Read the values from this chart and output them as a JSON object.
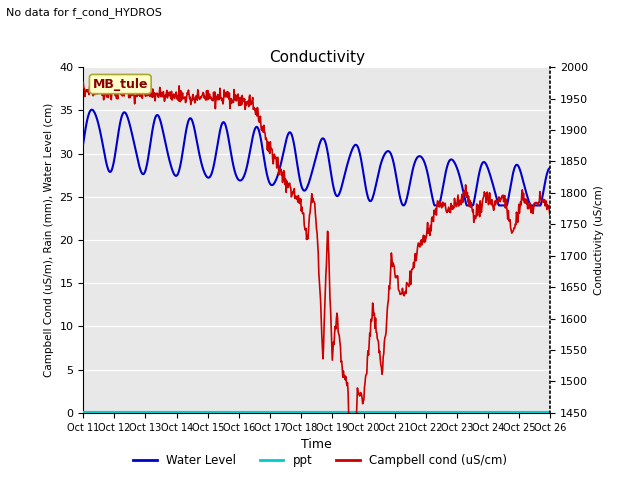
{
  "title": "Conductivity",
  "top_left_text": "No data for f_cond_HYDROS",
  "xlabel": "Time",
  "ylabel_left": "Campbell Cond (uS/m), Rain (mm), Water Level (cm)",
  "ylabel_right": "Conductivity (uS/cm)",
  "ylim_left": [
    0,
    40
  ],
  "ylim_right": [
    1450,
    2000
  ],
  "yticks_left": [
    0,
    5,
    10,
    15,
    20,
    25,
    30,
    35,
    40
  ],
  "yticks_right": [
    1450,
    1500,
    1550,
    1600,
    1650,
    1700,
    1750,
    1800,
    1850,
    1900,
    1950,
    2000
  ],
  "xtick_labels": [
    "Oct 11",
    "Oct 12",
    "Oct 13",
    "Oct 14",
    "Oct 15",
    "Oct 16",
    "Oct 17",
    "Oct 18",
    "Oct 19",
    "Oct 20",
    "Oct 21",
    "Oct 22",
    "Oct 23",
    "Oct 24",
    "Oct 25",
    "Oct 26"
  ],
  "bg_color": "#e8e8e8",
  "fig_bg_color": "#ffffff",
  "box_label": "MB_tule",
  "box_color": "#ffffcc",
  "box_border": "#aaa830",
  "legend_items": [
    "Water Level",
    "ppt",
    "Campbell cond (uS/cm)"
  ],
  "legend_colors": [
    "#0000cc",
    "#00cccc",
    "#cc0000"
  ],
  "wl_linewidth": 1.5,
  "cc_linewidth": 1.2
}
